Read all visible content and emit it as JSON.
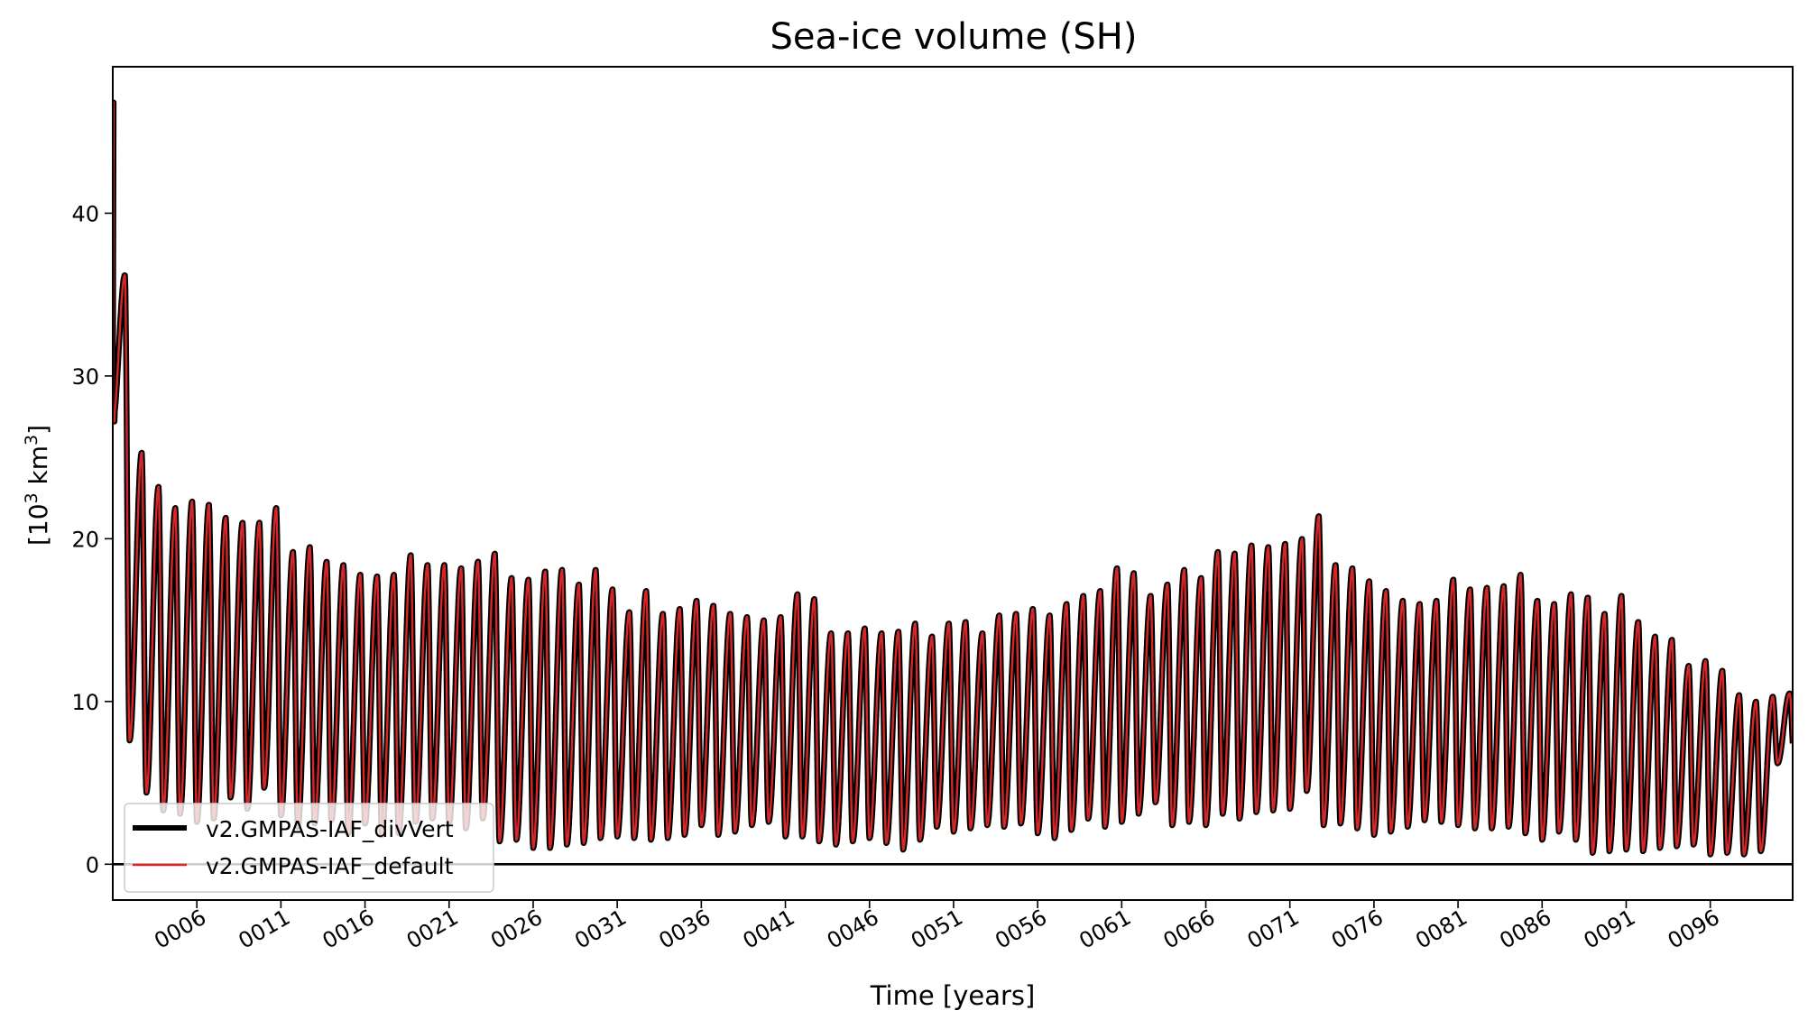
{
  "chart_data": {
    "type": "line",
    "title": "Sea-ice volume (SH)",
    "xlabel": "Time [years]",
    "ylabel_base": "[10",
    "ylabel_exp": "3",
    "ylabel_unit": " km",
    "ylabel_unit_exp": "3",
    "ylabel_end": "]",
    "xlim": [
      1.0,
      100.9
    ],
    "ylim": [
      -2.2,
      49
    ],
    "x_ticks": [
      6,
      11,
      16,
      21,
      26,
      31,
      36,
      41,
      46,
      51,
      56,
      61,
      66,
      71,
      76,
      81,
      86,
      91,
      96
    ],
    "x_tick_labels": [
      "0006",
      "0011",
      "0016",
      "0021",
      "0026",
      "0031",
      "0036",
      "0041",
      "0046",
      "0051",
      "0056",
      "0061",
      "0066",
      "0071",
      "0076",
      "0081",
      "0086",
      "0091",
      "0096"
    ],
    "y_ticks": [
      0,
      10,
      20,
      30,
      40
    ],
    "y_tick_labels": [
      "0",
      "10",
      "20",
      "30",
      "40"
    ],
    "zero_line": true,
    "grid": false,
    "legend_position": "lower-left",
    "series": [
      {
        "name": "v2.GMPAS-IAF_divVert",
        "color": "#000000",
        "seasonal_cycle": {
          "max_phase": 0.72,
          "years": [
            1,
            2,
            3,
            4,
            5,
            6,
            7,
            8,
            9,
            10,
            11,
            12,
            13,
            14,
            15,
            16,
            17,
            18,
            19,
            20,
            21,
            22,
            23,
            24,
            25,
            26,
            27,
            28,
            29,
            30,
            31,
            32,
            33,
            34,
            35,
            36,
            37,
            38,
            39,
            40,
            41,
            42,
            43,
            44,
            45,
            46,
            47,
            48,
            49,
            50,
            51,
            52,
            53,
            54,
            55,
            56,
            57,
            58,
            59,
            60,
            61,
            62,
            63,
            64,
            65,
            66,
            67,
            68,
            69,
            70,
            71,
            72,
            73,
            74,
            75,
            76,
            77,
            78,
            79,
            80,
            81,
            82,
            83,
            84,
            85,
            86,
            87,
            88,
            89,
            90,
            91,
            92,
            93,
            94,
            95,
            96,
            97,
            98,
            99,
            100
          ],
          "annual_max": [
            36.2,
            25.3,
            23.2,
            21.9,
            22.3,
            22.1,
            21.3,
            21.0,
            21.0,
            21.9,
            19.2,
            19.5,
            18.6,
            18.4,
            17.8,
            17.7,
            17.8,
            19.0,
            18.4,
            18.4,
            18.2,
            18.6,
            19.1,
            17.6,
            17.5,
            18.0,
            18.1,
            17.2,
            18.1,
            16.9,
            15.5,
            16.8,
            15.4,
            15.7,
            16.2,
            15.9,
            15.4,
            15.2,
            15.0,
            15.2,
            16.6,
            16.3,
            14.2,
            14.2,
            14.5,
            14.2,
            14.3,
            14.8,
            14.0,
            14.8,
            14.9,
            14.2,
            15.3,
            15.4,
            15.7,
            15.3,
            16.0,
            16.5,
            16.8,
            18.2,
            17.9,
            16.5,
            17.2,
            18.1,
            17.6,
            19.2,
            19.1,
            19.6,
            19.5,
            19.7,
            20.0,
            21.4,
            18.4,
            18.2,
            17.4,
            16.8,
            16.2,
            16.0,
            16.2,
            17.5,
            16.9,
            17.0,
            17.1,
            17.8,
            16.2,
            16.0,
            16.6,
            16.4,
            15.4,
            16.5,
            14.9,
            14.0,
            13.8,
            12.2,
            12.5,
            11.9,
            10.4,
            10.0,
            10.3,
            10.5
          ],
          "annual_min": [
            27.2,
            7.6,
            4.4,
            3.3,
            3.1,
            2.6,
            2.8,
            4.1,
            3.4,
            4.7,
            3.0,
            2.3,
            2.5,
            2.7,
            1.9,
            2.5,
            1.8,
            1.9,
            2.6,
            2.8,
            2.5,
            2.2,
            2.8,
            1.4,
            1.5,
            1.0,
            1.0,
            1.2,
            1.3,
            1.6,
            1.7,
            1.6,
            1.5,
            1.6,
            1.8,
            2.4,
            1.8,
            2.0,
            2.4,
            2.6,
            1.7,
            1.7,
            1.4,
            1.2,
            1.4,
            1.6,
            1.3,
            0.9,
            1.5,
            2.3,
            2.0,
            2.2,
            2.4,
            2.3,
            2.5,
            1.9,
            1.6,
            2.1,
            2.8,
            2.3,
            2.6,
            3.1,
            3.8,
            2.4,
            2.6,
            2.4,
            3.1,
            2.8,
            3.2,
            3.3,
            3.4,
            4.5,
            2.4,
            2.5,
            2.2,
            1.8,
            2.0,
            2.3,
            2.7,
            2.6,
            2.4,
            2.2,
            2.2,
            2.3,
            1.9,
            1.5,
            2.0,
            1.5,
            0.7,
            0.8,
            0.9,
            0.8,
            1.0,
            1.1,
            1.2,
            0.6,
            0.7,
            0.6,
            0.8,
            6.2
          ]
        }
      },
      {
        "name": "v2.GMPAS-IAF_default",
        "color": "#d62728",
        "seasonal_cycle": "same_as:v2.GMPAS-IAF_divVert"
      }
    ],
    "initial_peak": {
      "x": 1.05,
      "y": 46.8
    }
  }
}
